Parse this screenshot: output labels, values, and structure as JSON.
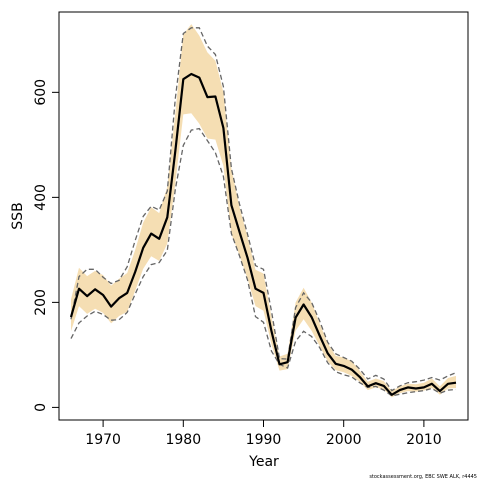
{
  "chart_data": {
    "type": "line",
    "xlabel": "Year",
    "ylabel": "SSB",
    "xlim": [
      1964.5,
      2015.5
    ],
    "ylim": [
      -24,
      753
    ],
    "x_ticks": [
      1970,
      1980,
      1990,
      2000,
      2010
    ],
    "y_ticks": [
      0,
      200,
      400,
      600
    ],
    "grid": false,
    "legend": "none",
    "colors": {
      "band": "#f5deb3",
      "estimate": "#000000",
      "bounds": "#666666"
    },
    "credit": "stockassessment.org, EBC SWE ALK, r4445",
    "years": [
      1966,
      1967,
      1968,
      1969,
      1970,
      1971,
      1972,
      1973,
      1974,
      1975,
      1976,
      1977,
      1978,
      1979,
      1980,
      1981,
      1982,
      1983,
      1984,
      1985,
      1986,
      1987,
      1988,
      1989,
      1990,
      1991,
      1992,
      1993,
      1994,
      1995,
      1996,
      1997,
      1998,
      1999,
      2000,
      2001,
      2002,
      2003,
      2004,
      2005,
      2006,
      2007,
      2008,
      2009,
      2010,
      2011,
      2012,
      2013,
      2014
    ],
    "ssb": [
      172,
      226,
      212,
      225,
      214,
      192,
      208,
      218,
      258,
      304,
      331,
      321,
      362,
      488,
      625,
      635,
      628,
      591,
      592,
      532,
      385,
      335,
      285,
      226,
      218,
      145,
      82,
      86,
      171,
      196,
      172,
      137,
      103,
      83,
      79,
      72,
      58,
      40,
      46,
      41,
      24,
      33,
      38,
      36,
      38,
      45,
      31,
      45,
      47
    ],
    "upper": [
      206,
      266,
      250,
      260,
      252,
      232,
      245,
      256,
      300,
      352,
      381,
      370,
      420,
      560,
      710,
      730,
      708,
      676,
      660,
      600,
      455,
      382,
      325,
      262,
      255,
      172,
      97,
      102,
      200,
      228,
      200,
      160,
      122,
      98,
      95,
      88,
      70,
      49,
      55,
      50,
      31,
      40,
      45,
      44,
      47,
      55,
      40,
      56,
      60
    ],
    "lower": [
      145,
      193,
      178,
      188,
      180,
      160,
      174,
      182,
      222,
      264,
      288,
      279,
      312,
      426,
      558,
      560,
      540,
      512,
      510,
      460,
      330,
      290,
      245,
      193,
      184,
      120,
      70,
      73,
      146,
      168,
      146,
      117,
      88,
      71,
      67,
      60,
      49,
      33,
      38,
      34,
      19,
      27,
      31,
      30,
      32,
      37,
      24,
      36,
      37
    ],
    "upper_dashed": [
      168,
      249,
      263,
      263,
      248,
      236,
      242,
      268,
      318,
      364,
      383,
      376,
      412,
      588,
      712,
      723,
      723,
      688,
      672,
      611,
      455,
      388,
      330,
      270,
      263,
      183,
      93,
      92,
      190,
      218,
      200,
      165,
      124,
      102,
      95,
      88,
      73,
      54,
      61,
      54,
      32,
      41,
      47,
      49,
      52,
      57,
      52,
      60,
      66
    ],
    "lower_dashed": [
      131,
      161,
      174,
      183,
      177,
      166,
      167,
      181,
      216,
      249,
      272,
      276,
      299,
      415,
      499,
      528,
      531,
      508,
      485,
      440,
      331,
      289,
      243,
      173,
      162,
      107,
      82,
      75,
      126,
      145,
      135,
      114,
      85,
      68,
      62,
      58,
      47,
      38,
      40,
      33,
      22,
      25,
      28,
      30,
      32,
      36,
      27,
      33,
      34
    ]
  }
}
